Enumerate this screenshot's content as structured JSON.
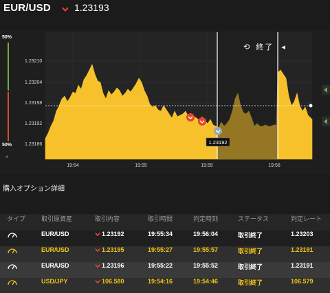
{
  "header": {
    "pair": "EUR/USD",
    "rate": "1.23193",
    "rate_icon": "down-chevron-icon",
    "accent": "#e4452e"
  },
  "gauge": {
    "top_label": "50%",
    "bottom_label": "50%",
    "close_label": "×"
  },
  "chart_data": {
    "type": "area",
    "color": "#f7c12b",
    "y_ticks": [
      "1.23210",
      "1.23204",
      "1.23198",
      "1.23192",
      "1.23186"
    ],
    "x_ticks": [
      "19:54",
      "19:55",
      "19:55",
      "19:56"
    ],
    "current_price_label": "1.23192",
    "end_marker_label": "終了",
    "grid": true
  },
  "section_title": "購入オプション詳細",
  "table": {
    "headers": [
      "タイプ",
      "取引原資産",
      "取引内容",
      "取引時間",
      "判定時刻",
      "ステータス",
      "判定レート"
    ],
    "rows": [
      {
        "asset": "EUR/USD",
        "content": "1.23192",
        "time": "19:55:34",
        "judge": "19:56:04",
        "status": "取引終了",
        "rate": "1.23203",
        "style": "first"
      },
      {
        "asset": "EUR/USD",
        "content": "1.23195",
        "time": "19:55:27",
        "judge": "19:55:57",
        "status": "取引終了",
        "rate": "1.23191",
        "style": "hl"
      },
      {
        "asset": "EUR/USD",
        "content": "1.23196",
        "time": "19:55:22",
        "judge": "19:55:52",
        "status": "取引終了",
        "rate": "1.23191",
        "style": "alt"
      },
      {
        "asset": "USD/JPY",
        "content": "106.580",
        "time": "19:54:16",
        "judge": "19:54:46",
        "status": "取引終了",
        "rate": "106.579",
        "style": "hl"
      }
    ]
  }
}
